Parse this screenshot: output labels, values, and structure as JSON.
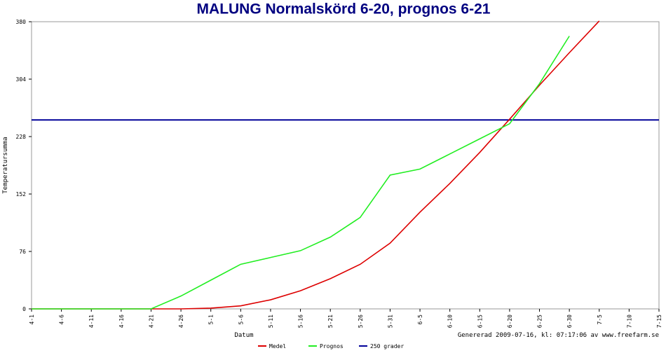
{
  "chart_data": {
    "type": "line",
    "title": "MALUNG Normalskörd 6-20, prognos 6-21",
    "xlabel": "Datum",
    "ylabel": "Temperatursumma",
    "footer": "Genererad 2009-07-16, kl: 07:17:06 av www.freefarm.se",
    "categories": [
      "4-1",
      "4-6",
      "4-11",
      "4-16",
      "4-21",
      "4-26",
      "5-1",
      "5-6",
      "5-11",
      "5-16",
      "5-21",
      "5-26",
      "5-31",
      "6-5",
      "6-10",
      "6-15",
      "6-20",
      "6-25",
      "6-30",
      "7-5",
      "7-10",
      "7-15"
    ],
    "series": [
      {
        "name": "Medel",
        "color": "#dd0000",
        "values": [
          0,
          0,
          0,
          0,
          0,
          0,
          1,
          4,
          12,
          24,
          40,
          59,
          87,
          128,
          166,
          207,
          251,
          296,
          339,
          381,
          null,
          null
        ]
      },
      {
        "name": "Prognos",
        "color": "#22ee22",
        "values": [
          0,
          0,
          0,
          0,
          0,
          17,
          38,
          59,
          68,
          77,
          95,
          121,
          177,
          185,
          205,
          225,
          245,
          298,
          361,
          null,
          null,
          null
        ]
      }
    ],
    "hlines": [
      {
        "name": "250 grader",
        "color": "#000099",
        "value": 250
      }
    ],
    "ylim": [
      0,
      380
    ],
    "yticks": [
      0,
      76,
      152,
      228,
      304,
      380
    ]
  }
}
